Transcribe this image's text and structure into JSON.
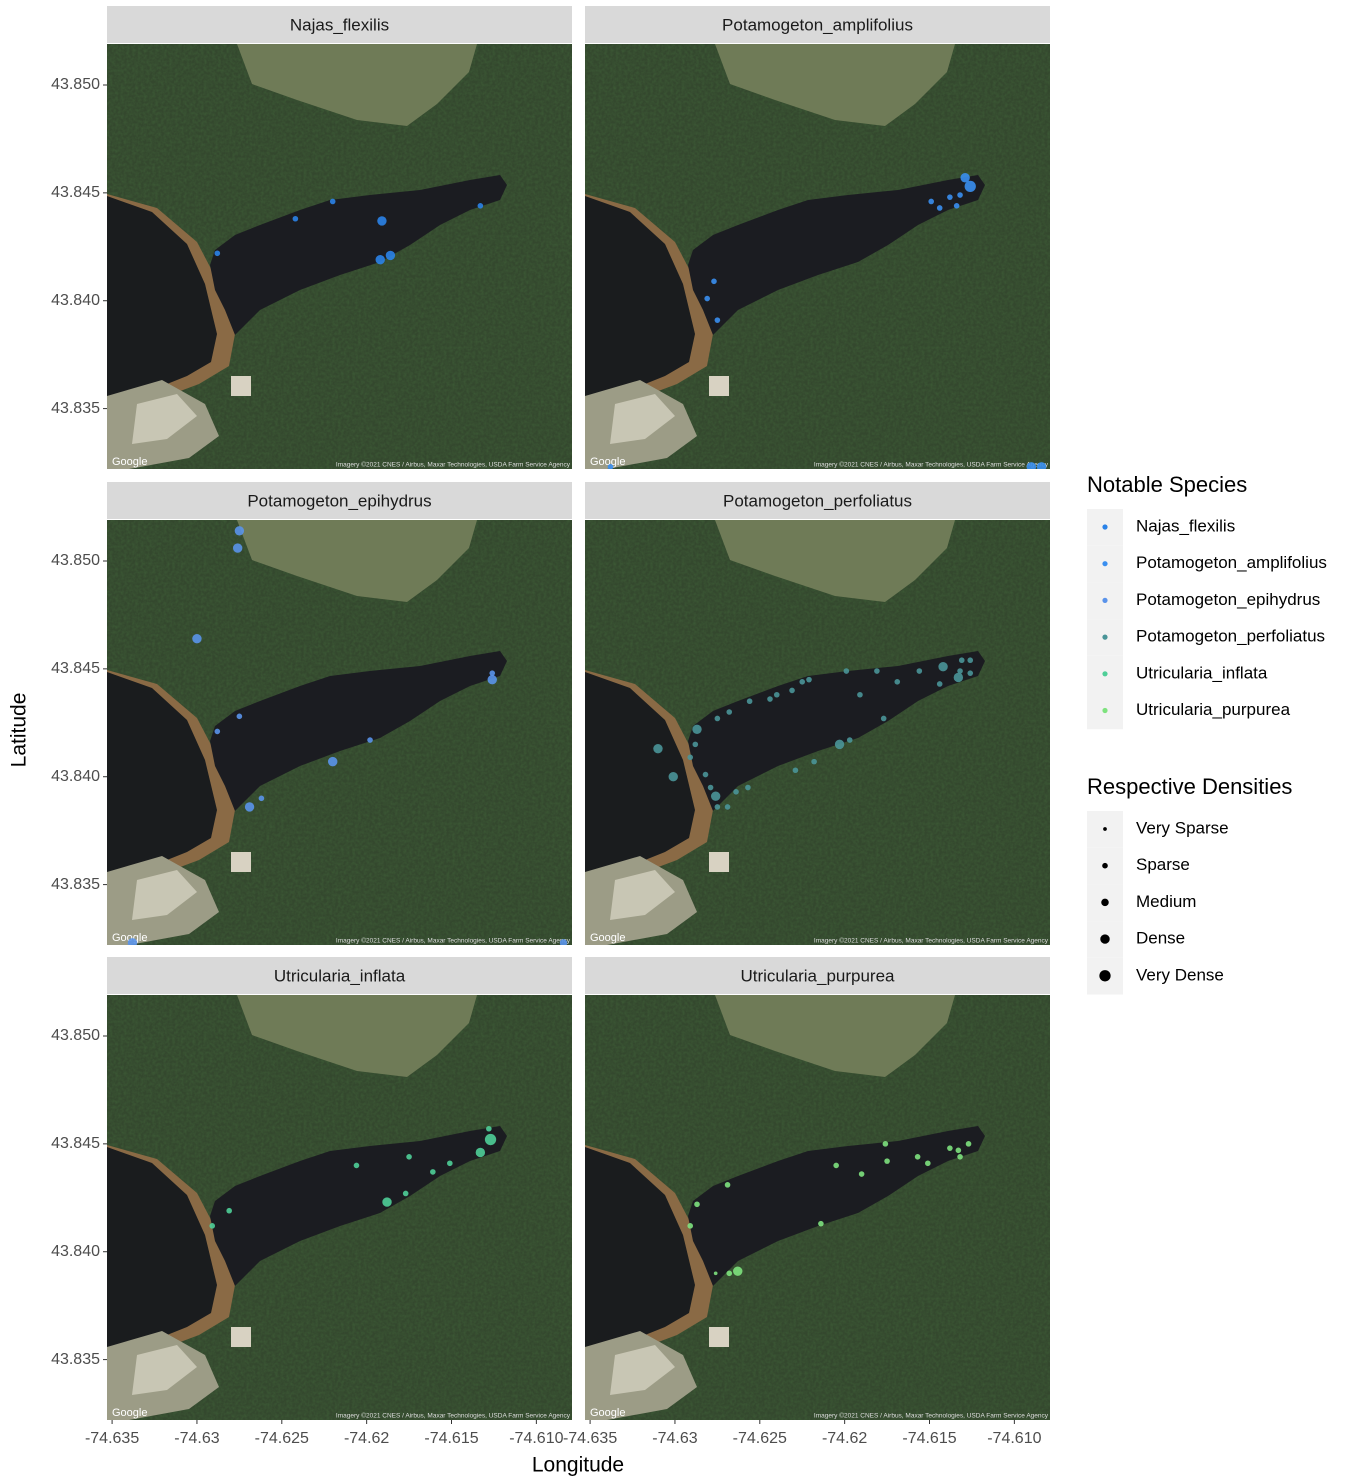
{
  "chart_data": {
    "type": "scatter",
    "xlabel": "Longitude",
    "ylabel": "Latitude",
    "xlim": [
      -74.6353,
      -74.6079
    ],
    "ylim": [
      43.8322,
      43.8519
    ],
    "xticks": [
      -74.635,
      -74.63,
      -74.625,
      -74.62,
      -74.615,
      {
        "value": -74.61,
        "label": "-74.610"
      }
    ],
    "yticks": [
      43.835,
      {
        "value": 43.84,
        "label": "43.840"
      },
      43.845,
      {
        "value": 43.85,
        "label": "43.850"
      }
    ],
    "attribution_left": "Google",
    "attribution_right": "Imagery ©2021 CNES / Airbus, Maxar Technologies, USDA Farm Service Agency",
    "color_legend_title": "Notable Species",
    "size_legend_title": "Respective Densities",
    "size_levels": [
      {
        "value": 1,
        "label": "Very Sparse"
      },
      {
        "value": 2,
        "label": "Sparse"
      },
      {
        "value": 3,
        "label": "Medium"
      },
      {
        "value": 4,
        "label": "Dense"
      },
      {
        "value": 5,
        "label": "Very Dense"
      }
    ],
    "series": [
      {
        "name": "Najas_flexilis",
        "color": "#2b83e8",
        "x": [
          -74.6288,
          -74.6242,
          -74.622,
          -74.6191,
          -74.6192,
          -74.6186,
          -74.6133
        ],
        "y": [
          43.8422,
          43.8438,
          43.8446,
          43.8437,
          43.8419,
          43.8421,
          43.8444
        ],
        "sizes": [
          2,
          2,
          2,
          4,
          4,
          4,
          2
        ]
      },
      {
        "name": "Potamogeton_amplifolius",
        "color": "#3a8ff0",
        "x": [
          -74.6129,
          -74.6126,
          -74.6132,
          -74.6134,
          -74.6138,
          -74.6144,
          -74.6149,
          -74.6277,
          -74.6281,
          -74.6275,
          -74.609,
          -74.6084,
          -74.6338
        ],
        "y": [
          43.8457,
          43.8453,
          43.8449,
          43.8444,
          43.8448,
          43.8443,
          43.8446,
          43.8409,
          43.8401,
          43.8391,
          43.8323,
          43.8323,
          43.8323
        ],
        "sizes": [
          4,
          5,
          2,
          2,
          2,
          2,
          2,
          2,
          2,
          2,
          4,
          4,
          2
        ]
      },
      {
        "name": "Potamogeton_epihydrus",
        "color": "#5a93ea",
        "x": [
          -74.6275,
          -74.6276,
          -74.63,
          -74.6126,
          -74.6126,
          -74.6275,
          -74.6288,
          -74.6198,
          -74.622,
          -74.6262,
          -74.6269,
          -74.6338,
          -74.6084
        ],
        "y": [
          43.8514,
          43.8506,
          43.8464,
          43.8448,
          43.8445,
          43.8428,
          43.8421,
          43.8417,
          43.8407,
          43.839,
          43.8386,
          43.8323,
          43.8323
        ],
        "sizes": [
          4,
          4,
          4,
          2,
          4,
          2,
          2,
          2,
          4,
          2,
          4,
          4,
          3
        ]
      },
      {
        "name": "Potamogeton_perfoliatus",
        "color": "#4a9598",
        "x": [
          -74.6142,
          -74.6133,
          -74.6144,
          -74.6131,
          -74.6126,
          -74.6126,
          -74.6132,
          -74.6156,
          -74.6169,
          -74.6181,
          -74.6191,
          -74.6199,
          -74.6221,
          -74.6225,
          -74.6231,
          -74.624,
          -74.6244,
          -74.6256,
          -74.6268,
          -74.6275,
          -74.6287,
          -74.6288,
          -74.6291,
          -74.631,
          -74.6301,
          -74.6282,
          -74.6279,
          -74.6276,
          -74.6275,
          -74.6269,
          -74.6264,
          -74.6257,
          -74.6229,
          -74.6218,
          -74.6203,
          -74.6197,
          -74.6177
        ],
        "y": [
          43.8451,
          43.8446,
          43.8443,
          43.8454,
          43.8454,
          43.8448,
          43.8449,
          43.8449,
          43.8444,
          43.8449,
          43.8438,
          43.8449,
          43.8445,
          43.8444,
          43.844,
          43.8438,
          43.8436,
          43.8435,
          43.843,
          43.8427,
          43.8422,
          43.8415,
          43.8409,
          43.8413,
          43.84,
          43.8401,
          43.8395,
          43.8391,
          43.8386,
          43.8386,
          43.8393,
          43.8395,
          43.8403,
          43.8407,
          43.8415,
          43.8417,
          43.8427
        ],
        "sizes": [
          4,
          4,
          2,
          2,
          2,
          2,
          2,
          2,
          2,
          2,
          2,
          2,
          2,
          2,
          2,
          2,
          2,
          2,
          2,
          2,
          4,
          2,
          2,
          4,
          4,
          2,
          2,
          4,
          2,
          2,
          2,
          2,
          2,
          2,
          4,
          2,
          2
        ]
      },
      {
        "name": "Utricularia_inflata",
        "color": "#4fcf98",
        "x": [
          -74.6127,
          -74.6133,
          -74.6128,
          -74.6151,
          -74.6161,
          -74.6175,
          -74.6206,
          -74.6177,
          -74.6188,
          -74.6281,
          -74.6291
        ],
        "y": [
          43.8452,
          43.8446,
          43.8457,
          43.8441,
          43.8437,
          43.8444,
          43.844,
          43.8427,
          43.8423,
          43.8419,
          43.8412
        ],
        "sizes": [
          5,
          4,
          2,
          2,
          2,
          2,
          2,
          2,
          4,
          2,
          2
        ]
      },
      {
        "name": "Utricularia_purpurea",
        "color": "#7ee27e",
        "x": [
          -74.6127,
          -74.6132,
          -74.6133,
          -74.6138,
          -74.6151,
          -74.6157,
          -74.6175,
          -74.6176,
          -74.619,
          -74.6205,
          -74.6214,
          -74.6269,
          -74.6287,
          -74.6291,
          -74.6263,
          -74.6268,
          -74.6276
        ],
        "y": [
          43.845,
          43.8444,
          43.8447,
          43.8448,
          43.8441,
          43.8444,
          43.8442,
          43.845,
          43.8436,
          43.844,
          43.8413,
          43.8431,
          43.8422,
          43.8412,
          43.8391,
          43.839,
          43.839
        ],
        "sizes": [
          2,
          2,
          2,
          2,
          2,
          2,
          2,
          2,
          2,
          2,
          2,
          2,
          2,
          2,
          4,
          2,
          1
        ]
      }
    ]
  }
}
